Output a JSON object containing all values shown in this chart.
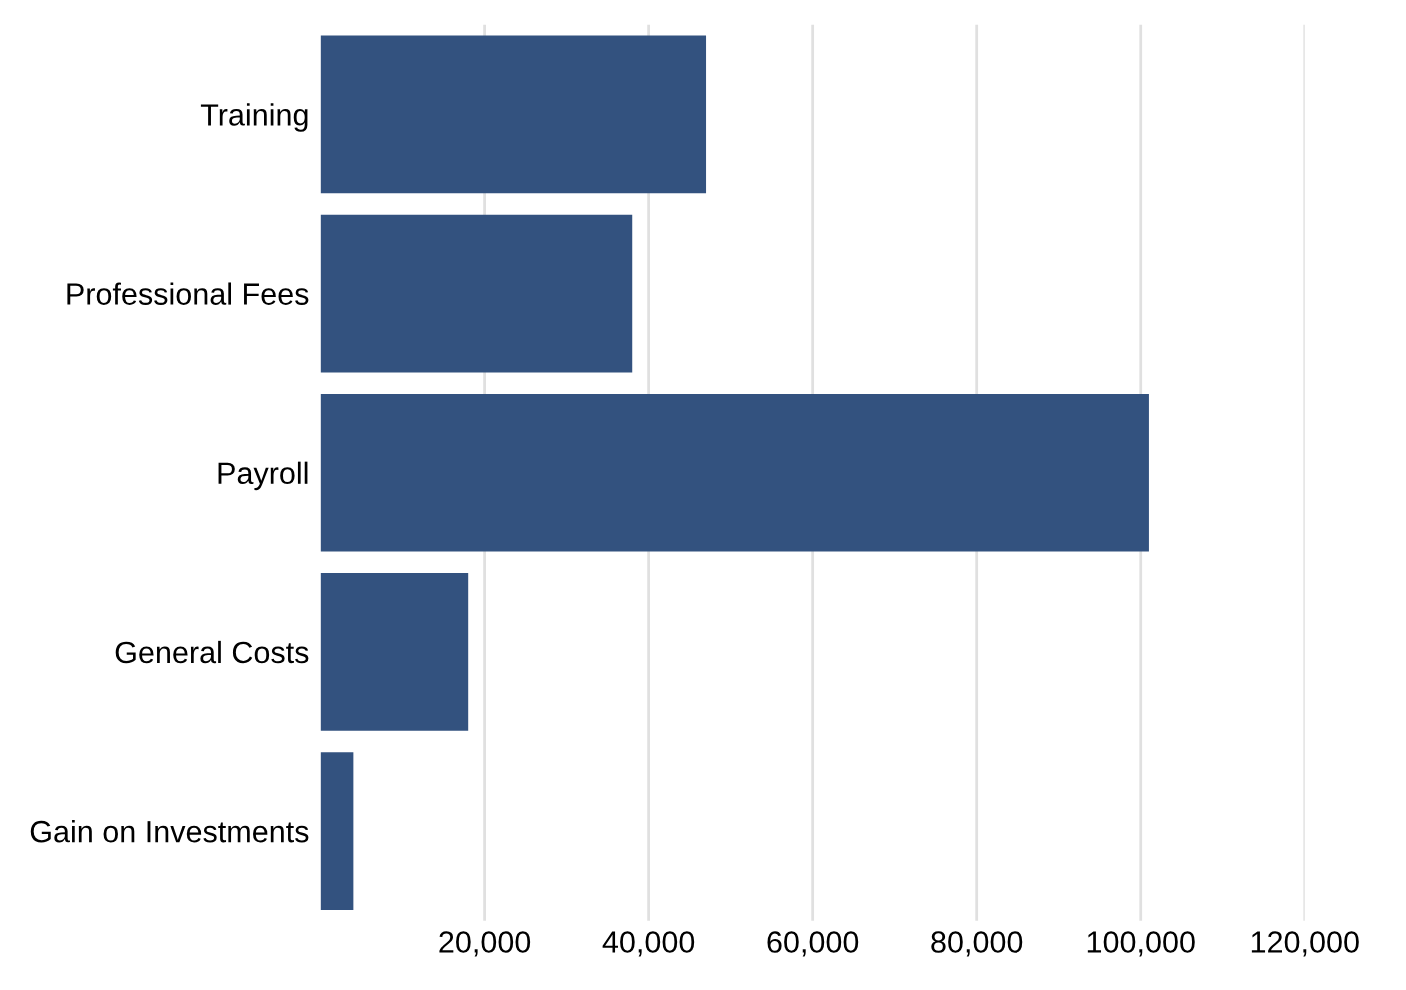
{
  "chart_data": {
    "type": "bar",
    "orientation": "horizontal",
    "categories": [
      "Training",
      "Professional Fees",
      "Payroll",
      "General Costs",
      "Gain on Investments"
    ],
    "values": [
      47000,
      38000,
      101000,
      18000,
      4000
    ],
    "color": "#33527f",
    "xlim": [
      0,
      120000
    ],
    "xticks": [
      {
        "value": 20000,
        "label": "20,000"
      },
      {
        "value": 40000,
        "label": "40,000"
      },
      {
        "value": 60000,
        "label": "60,000"
      },
      {
        "value": 80000,
        "label": "80,000"
      },
      {
        "value": 100000,
        "label": "100,000"
      },
      {
        "value": 120000,
        "label": "120,000"
      }
    ],
    "grid": "x"
  }
}
